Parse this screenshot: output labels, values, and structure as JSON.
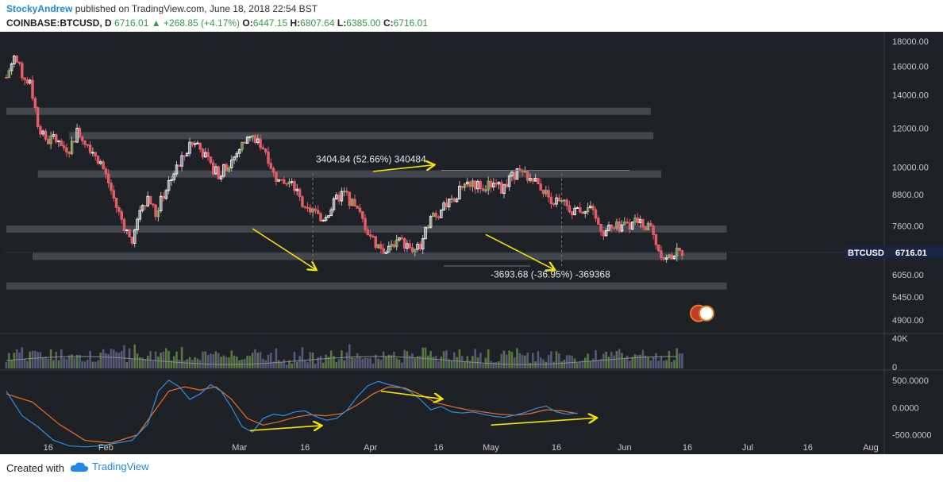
{
  "header": {
    "author": "StockyAndrew",
    "published_text": "published on TradingView.com, June 18, 2018 22:54 BST",
    "symbol": "COINBASE:BTCUSD, D",
    "last": "6716.01",
    "change": "+268.85 (+4.17%)",
    "open_label": "O:",
    "open": "6447.15",
    "high_label": "H:",
    "high": "6807.64",
    "low_label": "L:",
    "low": "6385.00",
    "close_label": "C:",
    "close": "6716.01"
  },
  "footer": {
    "created_with": "Created with",
    "brand": "TradingView"
  },
  "colors": {
    "background": "#1e2126",
    "up": "#ffffff",
    "down": "#e35d6a",
    "green": "#8bc34a",
    "band": "#4a4e55",
    "arrow": "#f5e400",
    "macd": "#2f8ee6",
    "signal": "#e8702a",
    "volume": "#5c5f80",
    "volume_up": "#5f7f48",
    "volume_ma": "#8a8a8a",
    "axis_text": "#c8c8c8",
    "price_tag_bg": "#1b2441"
  },
  "chart_data": {
    "type": "candlestick",
    "symbol": "BTCUSD",
    "last_price_label": "6716.01",
    "y_log_scale": true,
    "price_ticks": [
      "18000.00",
      "16000.00",
      "14000.00",
      "12000.00",
      "10000.00",
      "8800.00",
      "7600.00",
      "6050.00",
      "5450.00",
      "4900.00"
    ],
    "volume_ticks": [
      "40K",
      "0"
    ],
    "macd_ticks": [
      "500.0000",
      "0.0000",
      "-500.0000"
    ],
    "x_ticks": [
      "16",
      "Feb",
      "Mar",
      "16",
      "Apr",
      "16",
      "May",
      "16",
      "Jun",
      "16",
      "Jul",
      "16",
      "Aug"
    ],
    "close_path": [
      [
        0,
        15200
      ],
      [
        3,
        16800
      ],
      [
        6,
        15400
      ],
      [
        9,
        14800
      ],
      [
        12,
        12300
      ],
      [
        15,
        11200
      ],
      [
        18,
        11500
      ],
      [
        21,
        11000
      ],
      [
        24,
        10900
      ],
      [
        27,
        11800
      ],
      [
        30,
        11300
      ],
      [
        33,
        10800
      ],
      [
        36,
        10200
      ],
      [
        39,
        9300
      ],
      [
        42,
        8300
      ],
      [
        45,
        7600
      ],
      [
        48,
        7000
      ],
      [
        51,
        8200
      ],
      [
        54,
        8700
      ],
      [
        57,
        8000
      ],
      [
        60,
        8800
      ],
      [
        63,
        9600
      ],
      [
        66,
        10100
      ],
      [
        69,
        10800
      ],
      [
        72,
        11300
      ],
      [
        75,
        10700
      ],
      [
        78,
        10000
      ],
      [
        81,
        9700
      ],
      [
        84,
        10000
      ],
      [
        87,
        10500
      ],
      [
        90,
        11100
      ],
      [
        93,
        11500
      ],
      [
        96,
        11300
      ],
      [
        99,
        10800
      ],
      [
        102,
        9700
      ],
      [
        105,
        9200
      ],
      [
        108,
        9300
      ],
      [
        111,
        8900
      ],
      [
        114,
        8100
      ],
      [
        117,
        8200
      ],
      [
        120,
        7800
      ],
      [
        123,
        8100
      ],
      [
        126,
        8600
      ],
      [
        129,
        8900
      ],
      [
        132,
        8400
      ],
      [
        135,
        8000
      ],
      [
        138,
        7400
      ],
      [
        141,
        7000
      ],
      [
        144,
        6800
      ],
      [
        147,
        7000
      ],
      [
        150,
        7100
      ],
      [
        153,
        6900
      ],
      [
        156,
        6800
      ],
      [
        159,
        7000
      ],
      [
        162,
        8100
      ],
      [
        165,
        8000
      ],
      [
        168,
        8400
      ],
      [
        171,
        8500
      ],
      [
        174,
        9200
      ],
      [
        177,
        9300
      ],
      [
        180,
        9200
      ],
      [
        183,
        9100
      ],
      [
        186,
        9300
      ],
      [
        189,
        9000
      ],
      [
        192,
        9400
      ],
      [
        195,
        9800
      ],
      [
        198,
        9600
      ],
      [
        201,
        9400
      ],
      [
        204,
        9100
      ],
      [
        207,
        8700
      ],
      [
        210,
        8500
      ],
      [
        213,
        8400
      ],
      [
        216,
        8200
      ],
      [
        219,
        8100
      ],
      [
        222,
        8400
      ],
      [
        225,
        7800
      ],
      [
        228,
        7400
      ],
      [
        231,
        7500
      ],
      [
        234,
        7600
      ],
      [
        237,
        7650
      ],
      [
        240,
        7700
      ],
      [
        243,
        7650
      ],
      [
        246,
        7500
      ],
      [
        249,
        6800
      ],
      [
        252,
        6500
      ],
      [
        255,
        6700
      ],
      [
        258,
        6716
      ]
    ],
    "horizontal_bands": [
      {
        "price": 13000,
        "x_start": 0,
        "x_end": 246
      },
      {
        "price": 11600,
        "x_start": 24,
        "x_end": 247
      },
      {
        "price": 9700,
        "x_start": 12,
        "x_end": 250
      },
      {
        "price": 7500,
        "x_start": 0,
        "x_end": 275
      },
      {
        "price": 6600,
        "x_start": 10,
        "x_end": 275
      },
      {
        "price": 5750,
        "x_start": 0,
        "x_end": 275
      }
    ],
    "annotations": [
      {
        "text": "3404.84 (52.66%) 340484"
      },
      {
        "text": "-3693.68 (-36.95%) -369368"
      }
    ],
    "arrows": [
      {
        "from": [
          94,
          7500
        ],
        "to": [
          118,
          6200
        ]
      },
      {
        "from": [
          140,
          9800
        ],
        "to": [
          163,
          10100
        ]
      },
      {
        "from": [
          183,
          7300
        ],
        "to": [
          209,
          6200
        ]
      },
      {
        "macd_from": [
          93,
          -420
        ],
        "macd_to": [
          120,
          -330
        ]
      },
      {
        "macd_from": [
          143,
          300
        ],
        "macd_to": [
          166,
          160
        ]
      },
      {
        "macd_from": [
          185,
          -320
        ],
        "macd_to": [
          225,
          -190
        ]
      }
    ],
    "macd_path": [
      [
        0,
        300
      ],
      [
        6,
        -150
      ],
      [
        12,
        -350
      ],
      [
        18,
        -600
      ],
      [
        24,
        -700
      ],
      [
        30,
        -720
      ],
      [
        36,
        -700
      ],
      [
        42,
        -650
      ],
      [
        48,
        -600
      ],
      [
        54,
        -300
      ],
      [
        58,
        300
      ],
      [
        62,
        500
      ],
      [
        66,
        380
      ],
      [
        70,
        150
      ],
      [
        74,
        250
      ],
      [
        78,
        420
      ],
      [
        82,
        300
      ],
      [
        86,
        0
      ],
      [
        90,
        -350
      ],
      [
        94,
        -450
      ],
      [
        98,
        -200
      ],
      [
        102,
        -120
      ],
      [
        106,
        -150
      ],
      [
        110,
        -80
      ],
      [
        114,
        -60
      ],
      [
        118,
        -160
      ],
      [
        122,
        -230
      ],
      [
        126,
        -200
      ],
      [
        130,
        -50
      ],
      [
        134,
        200
      ],
      [
        138,
        400
      ],
      [
        142,
        480
      ],
      [
        146,
        420
      ],
      [
        150,
        380
      ],
      [
        154,
        300
      ],
      [
        158,
        150
      ],
      [
        162,
        -40
      ],
      [
        166,
        20
      ],
      [
        170,
        -80
      ],
      [
        174,
        -100
      ],
      [
        178,
        -80
      ],
      [
        182,
        -120
      ],
      [
        186,
        -160
      ],
      [
        190,
        -180
      ],
      [
        194,
        -140
      ],
      [
        198,
        -90
      ],
      [
        202,
        -20
      ],
      [
        206,
        30
      ],
      [
        210,
        -80
      ],
      [
        214,
        -120
      ],
      [
        218,
        -100
      ]
    ],
    "signal_path": [
      [
        0,
        250
      ],
      [
        10,
        100
      ],
      [
        20,
        -300
      ],
      [
        30,
        -600
      ],
      [
        40,
        -650
      ],
      [
        50,
        -500
      ],
      [
        56,
        -100
      ],
      [
        62,
        300
      ],
      [
        68,
        380
      ],
      [
        74,
        320
      ],
      [
        80,
        380
      ],
      [
        86,
        150
      ],
      [
        92,
        -200
      ],
      [
        98,
        -320
      ],
      [
        104,
        -260
      ],
      [
        110,
        -180
      ],
      [
        116,
        -130
      ],
      [
        122,
        -150
      ],
      [
        128,
        -110
      ],
      [
        134,
        50
      ],
      [
        140,
        250
      ],
      [
        146,
        380
      ],
      [
        152,
        360
      ],
      [
        158,
        240
      ],
      [
        164,
        90
      ],
      [
        170,
        20
      ],
      [
        176,
        -40
      ],
      [
        182,
        -80
      ],
      [
        188,
        -120
      ],
      [
        194,
        -140
      ],
      [
        200,
        -110
      ],
      [
        206,
        -40
      ],
      [
        212,
        -60
      ],
      [
        218,
        -110
      ]
    ]
  }
}
